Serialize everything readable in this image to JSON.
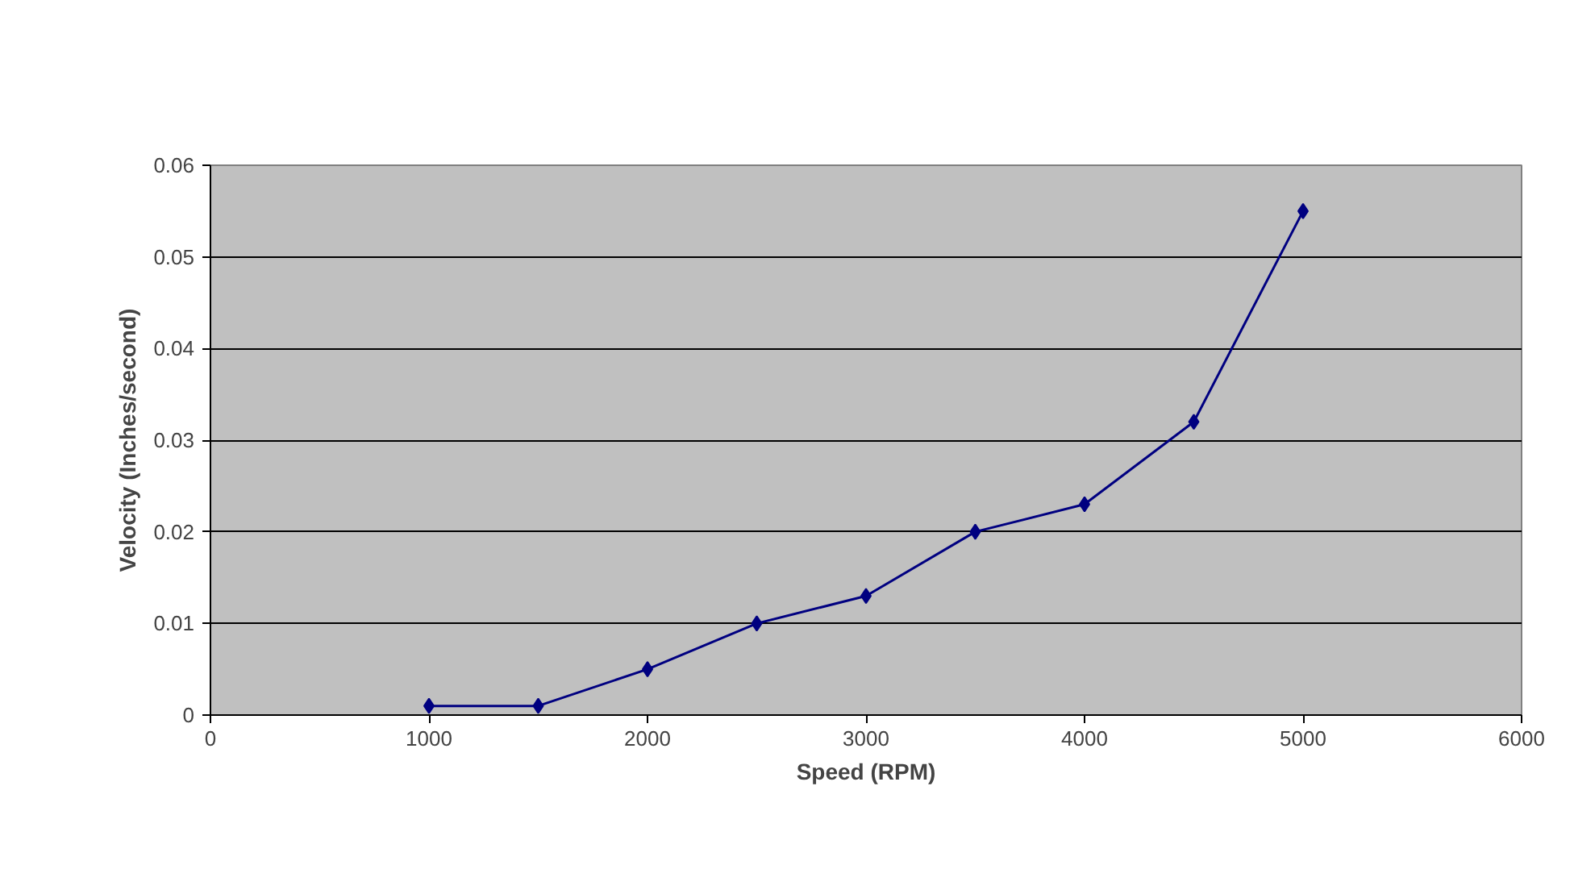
{
  "chart_data": {
    "type": "line",
    "xlabel": "Speed (RPM)",
    "ylabel": "Velocity (Inches/second)",
    "x": [
      1000,
      1500,
      2000,
      2500,
      3000,
      3500,
      4000,
      4500,
      5000
    ],
    "series": [
      {
        "color": "#000080",
        "values": [
          0.001,
          0.001,
          0.005,
          0.01,
          0.013,
          0.02,
          0.023,
          0.032,
          0.055
        ]
      }
    ],
    "xlim": [
      0,
      6000
    ],
    "xticks": [
      0,
      1000,
      2000,
      3000,
      4000,
      5000,
      6000
    ],
    "ylim": [
      0,
      0.06
    ],
    "yticks": [
      {
        "value": 0,
        "label": "0"
      },
      0.01,
      0.02,
      0.03,
      0.04,
      0.05,
      0.06
    ],
    "grid": "y",
    "marker": "diamond",
    "line_style": "solid"
  }
}
